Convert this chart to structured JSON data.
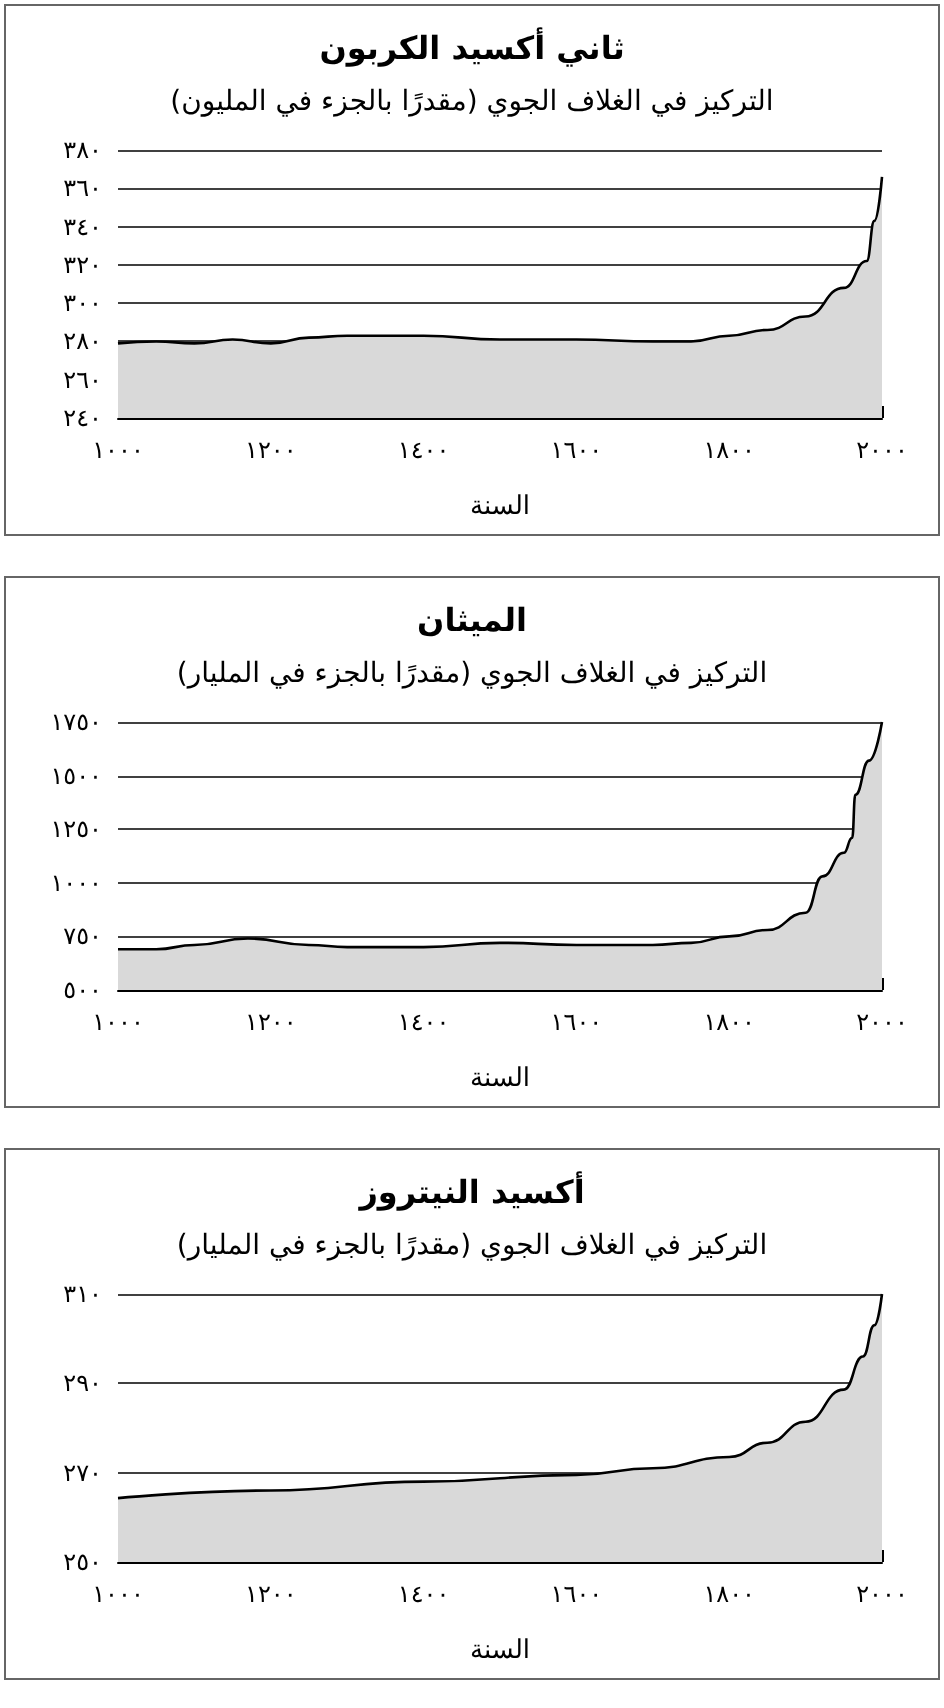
{
  "chart_data": [
    {
      "type": "area",
      "title": "ثاني أكسيد الكربون",
      "subtitle": "التركيز في الغلاف الجوي (مقدرًا بالجزء في المليون)",
      "xlabel": "السنة",
      "x": [
        1000,
        1050,
        1100,
        1150,
        1200,
        1250,
        1300,
        1400,
        1500,
        1600,
        1700,
        1750,
        1800,
        1850,
        1900,
        1950,
        1980,
        1990,
        2000
      ],
      "series": [
        {
          "color": "#d9d9d9",
          "values": [
            279,
            280,
            279,
            281,
            279,
            282,
            283,
            283,
            281,
            281,
            280,
            280,
            283,
            286,
            293,
            308,
            322,
            343,
            366
          ]
        }
      ],
      "xlim": [
        1000,
        2000
      ],
      "xticks": [
        {
          "value": 1000,
          "label": "١٠٠٠"
        },
        {
          "value": 1200,
          "label": "١٢٠٠"
        },
        {
          "value": 1400,
          "label": "١٤٠٠"
        },
        {
          "value": 1600,
          "label": "١٦٠٠"
        },
        {
          "value": 1800,
          "label": "١٨٠٠"
        },
        {
          "value": 2000,
          "label": "٢٠٠٠"
        }
      ],
      "ylim": [
        240,
        380
      ],
      "yticks": [
        {
          "value": 240,
          "label": "٢٤٠"
        },
        {
          "value": 260,
          "label": "٢٦٠"
        },
        {
          "value": 280,
          "label": "٢٨٠"
        },
        {
          "value": 300,
          "label": "٣٠٠"
        },
        {
          "value": 320,
          "label": "٣٢٠"
        },
        {
          "value": 340,
          "label": "٣٤٠"
        },
        {
          "value": 360,
          "label": "٣٦٠"
        },
        {
          "value": 380,
          "label": "٣٨٠"
        }
      ],
      "grid": "y"
    },
    {
      "type": "area",
      "title": "الميثان",
      "subtitle": "التركيز في الغلاف الجوي (مقدرًا بالجزء في المليار)",
      "xlabel": "السنة",
      "x": [
        1000,
        1050,
        1100,
        1170,
        1250,
        1300,
        1400,
        1500,
        1600,
        1700,
        1750,
        1800,
        1850,
        1900,
        1922,
        1950,
        1961,
        1965,
        1983,
        2000
      ],
      "series": [
        {
          "color": "#d9d9d9",
          "values": [
            690,
            690,
            710,
            740,
            710,
            700,
            700,
            720,
            710,
            710,
            720,
            750,
            780,
            860,
            1030,
            1140,
            1210,
            1410,
            1570,
            1750
          ]
        }
      ],
      "xlim": [
        1000,
        2000
      ],
      "xticks": [
        {
          "value": 1000,
          "label": "١٠٠٠"
        },
        {
          "value": 1200,
          "label": "١٢٠٠"
        },
        {
          "value": 1400,
          "label": "١٤٠٠"
        },
        {
          "value": 1600,
          "label": "١٦٠٠"
        },
        {
          "value": 1800,
          "label": "١٨٠٠"
        },
        {
          "value": 2000,
          "label": "٢٠٠٠"
        }
      ],
      "ylim": [
        500,
        1750
      ],
      "yticks": [
        {
          "value": 500,
          "label": "٥٠٠"
        },
        {
          "value": 750,
          "label": "٧٥٠"
        },
        {
          "value": 1000,
          "label": "١٠٠٠"
        },
        {
          "value": 1250,
          "label": "١٢٥٠"
        },
        {
          "value": 1500,
          "label": "١٥٠٠"
        },
        {
          "value": 1750,
          "label": "١٧٥٠"
        }
      ],
      "grid": "y"
    },
    {
      "type": "area",
      "title": "أكسيد النيتروز",
      "subtitle": "التركيز في الغلاف الجوي (مقدرًا بالجزء في المليار)",
      "xlabel": "السنة",
      "x": [
        1000,
        1200,
        1400,
        1600,
        1700,
        1800,
        1850,
        1900,
        1950,
        1975,
        1990,
        2000
      ],
      "series": [
        {
          "color": "#d9d9d9",
          "values": [
            264.3,
            266,
            268,
            269.5,
            271,
            273.5,
            276.7,
            281.4,
            288.6,
            296,
            303,
            310
          ]
        }
      ],
      "xlim": [
        1000,
        2000
      ],
      "xticks": [
        {
          "value": 1000,
          "label": "١٠٠٠"
        },
        {
          "value": 1200,
          "label": "١٢٠٠"
        },
        {
          "value": 1400,
          "label": "١٤٠٠"
        },
        {
          "value": 1600,
          "label": "١٦٠٠"
        },
        {
          "value": 1800,
          "label": "١٨٠٠"
        },
        {
          "value": 2000,
          "label": "٢٠٠٠"
        }
      ],
      "ylim": [
        250,
        310
      ],
      "yticks": [
        {
          "value": 250,
          "label": "٢٥٠"
        },
        {
          "value": 270,
          "label": "٢٧٠"
        },
        {
          "value": 290,
          "label": "٢٩٠"
        },
        {
          "value": 310,
          "label": "٣١٠"
        }
      ],
      "grid": "y"
    }
  ]
}
